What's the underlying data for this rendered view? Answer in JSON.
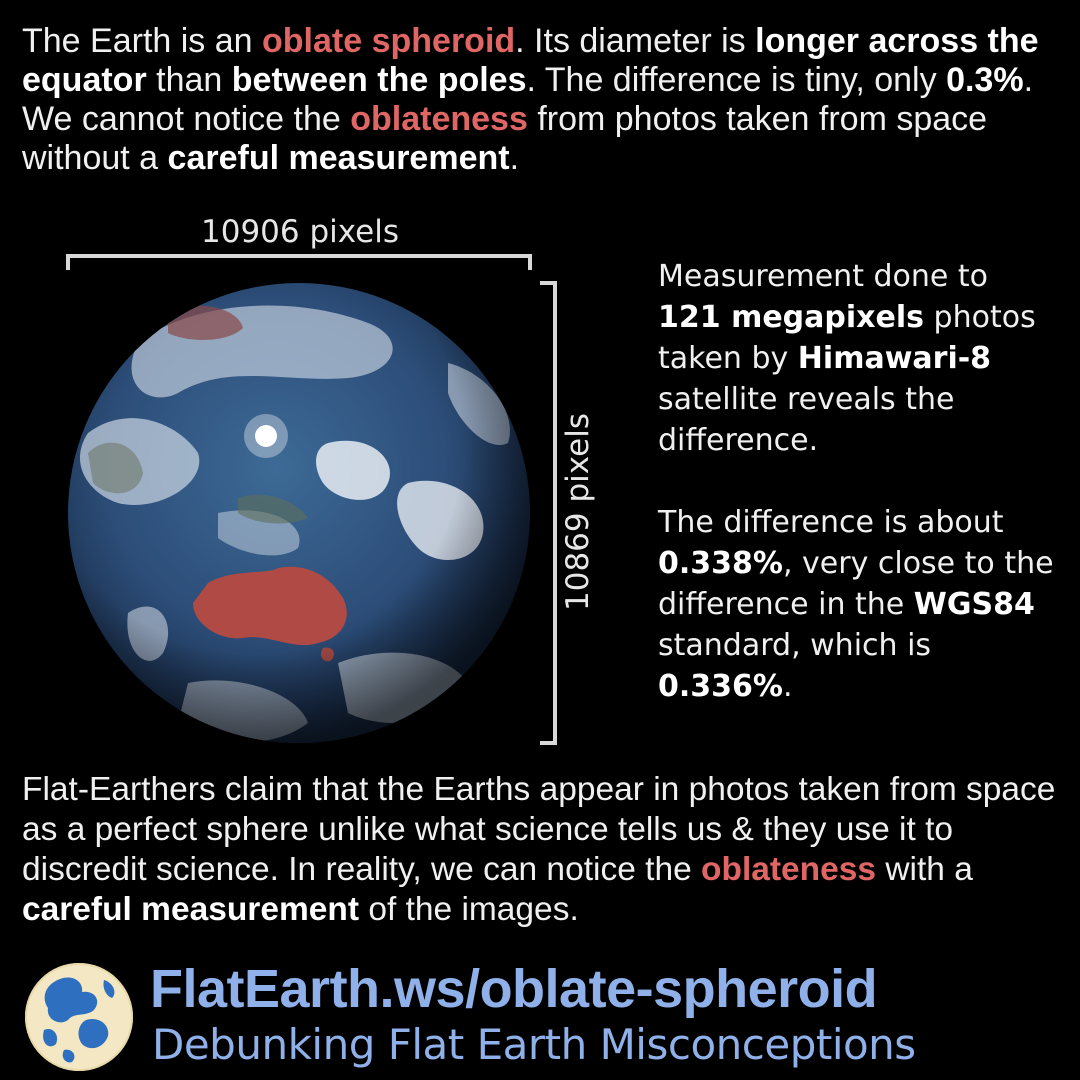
{
  "intro": {
    "t1": "The Earth is an ",
    "h1": "oblate spheroid",
    "t2": ". Its diameter is ",
    "b1": "longer across the equator",
    "t3": " than ",
    "b2": "between the poles",
    "t4": ". The difference is tiny, only ",
    "b3": "0.3%",
    "t5": ". We cannot notice the ",
    "h2": "oblateness",
    "t6": " from photos taken from space without a ",
    "b4": "careful measurement",
    "t7": "."
  },
  "measure": {
    "width_label": "10906 pixels",
    "height_label": "10869 pixels"
  },
  "side1": {
    "t1": "Measurement done to ",
    "b1": "121 megapixels",
    "t2": " photos taken by ",
    "b2": "Himawari-8",
    "t3": " satellite reveals the difference."
  },
  "side2": {
    "t1": "The difference is about ",
    "b1": "0.338%",
    "t2": ", very close to the difference in the ",
    "b2": "WGS84",
    "t3": " standard, which is ",
    "b3": "0.336%",
    "t4": "."
  },
  "outro": {
    "t1": "Flat-Earthers claim that the Earths appear in photos taken from space as a perfect sphere unlike what science tells us & they use it to discredit science. In reality, we can notice the ",
    "h1": "oblateness",
    "t2": " with a ",
    "b1": "careful measurement",
    "t3": " of the images."
  },
  "brand": {
    "title": "FlatEarth.ws/oblate-spheroid",
    "subtitle": "Debunking Flat Earth Misconceptions",
    "logo_icon": "globe-logo-icon"
  },
  "colors": {
    "highlight": "#e06666",
    "brand": "#8fb0e8",
    "ocean": "#2c4d78",
    "land_red": "#b04a44"
  }
}
